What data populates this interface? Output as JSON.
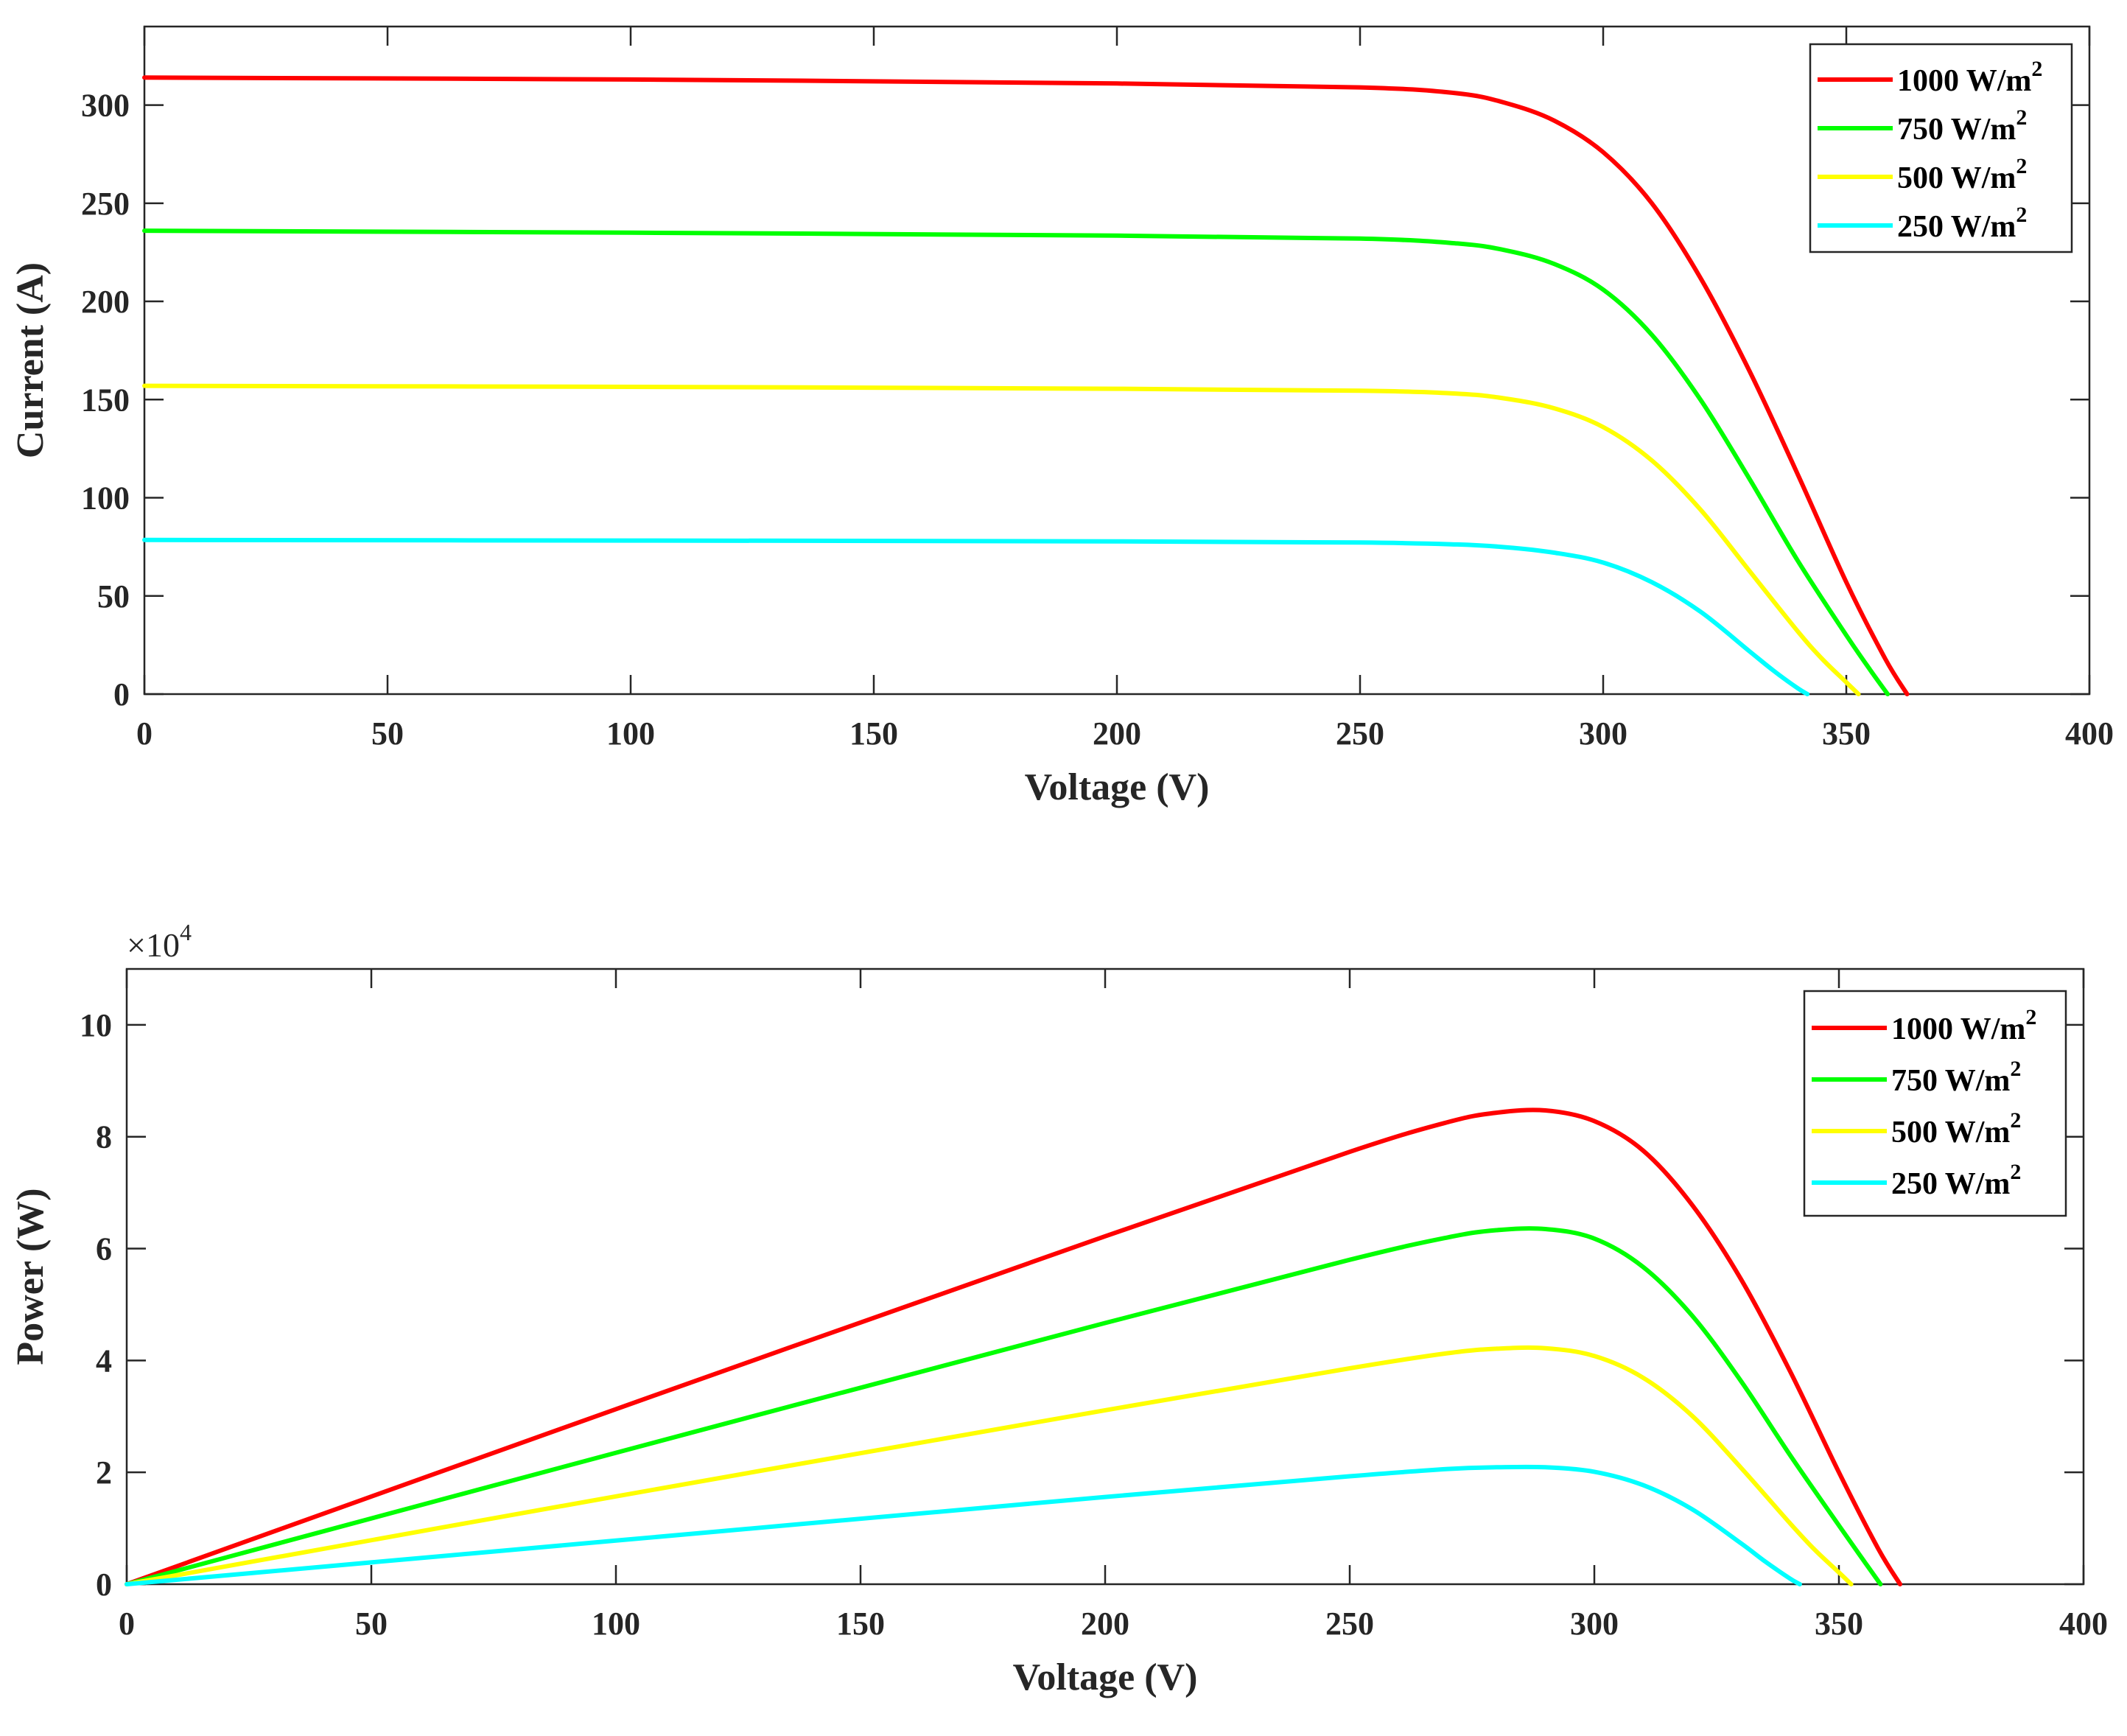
{
  "chart_data": [
    {
      "type": "line",
      "xlabel": "Voltage (V)",
      "ylabel": "Current (A)",
      "xlim": [
        0,
        400
      ],
      "ylim": [
        0,
        340
      ],
      "xticks": [
        0,
        50,
        100,
        150,
        200,
        250,
        300,
        350,
        400
      ],
      "yticks": [
        0,
        50,
        100,
        150,
        200,
        250,
        300
      ],
      "legend_position": "top-right",
      "series": [
        {
          "name": "1000 W/m",
          "sup": "2",
          "color": "#ff0000",
          "x": [
            0,
            100,
            200,
            250,
            270,
            280,
            290,
            300,
            310,
            320,
            330,
            340,
            350,
            358,
            362.5
          ],
          "y": [
            314,
            313,
            311,
            309,
            306,
            301,
            292,
            276,
            250,
            212,
            165,
            112,
            57,
            18,
            0
          ]
        },
        {
          "name": "750 W/m",
          "sup": "2",
          "color": "#00ff00",
          "x": [
            0,
            100,
            200,
            250,
            270,
            280,
            290,
            300,
            310,
            320,
            330,
            340,
            350,
            355,
            358.5
          ],
          "y": [
            236,
            235,
            233.5,
            232,
            229.5,
            226,
            219,
            206,
            183,
            150,
            110,
            68,
            30,
            12,
            0
          ]
        },
        {
          "name": "500 W/m",
          "sup": "2",
          "color": "#ffff00",
          "x": [
            0,
            100,
            200,
            250,
            270,
            280,
            290,
            300,
            310,
            320,
            330,
            340,
            345,
            350,
            352.5
          ],
          "y": [
            157,
            156.5,
            155.5,
            154.5,
            153,
            150.5,
            145.5,
            136,
            119,
            94,
            63,
            32,
            18,
            6,
            0
          ]
        },
        {
          "name": "250 W/m",
          "sup": "2",
          "color": "#00ffff",
          "x": [
            0,
            100,
            200,
            250,
            270,
            280,
            290,
            300,
            310,
            320,
            330,
            335,
            340,
            342
          ],
          "y": [
            78.5,
            78.2,
            77.8,
            77.2,
            76.2,
            74.8,
            72,
            67,
            57,
            42,
            22,
            12,
            3,
            0
          ]
        }
      ]
    },
    {
      "type": "line",
      "xlabel": "Voltage (V)",
      "ylabel": "Power (W)",
      "y_multiplier": "×10",
      "y_multiplier_exp": "4",
      "xlim": [
        0,
        400
      ],
      "ylim": [
        0,
        11
      ],
      "xticks": [
        0,
        50,
        100,
        150,
        200,
        250,
        300,
        350,
        400
      ],
      "yticks": [
        0,
        2,
        4,
        6,
        8,
        10
      ],
      "legend_position": "top-right",
      "series": [
        {
          "name": "1000 W/m",
          "sup": "2",
          "color": "#ff0000",
          "x": [
            0,
            100,
            200,
            250,
            270,
            280,
            290,
            300,
            310,
            320,
            330,
            340,
            350,
            358,
            362.5
          ],
          "y": [
            0,
            3.13,
            6.22,
            7.73,
            8.26,
            8.43,
            8.47,
            8.28,
            7.75,
            6.78,
            5.45,
            3.81,
            2.0,
            0.64,
            0
          ]
        },
        {
          "name": "750 W/m",
          "sup": "2",
          "color": "#00ff00",
          "x": [
            0,
            100,
            200,
            250,
            270,
            280,
            290,
            300,
            310,
            320,
            330,
            340,
            350,
            355,
            358.5
          ],
          "y": [
            0,
            2.35,
            4.67,
            5.8,
            6.2,
            6.33,
            6.35,
            6.18,
            5.67,
            4.8,
            3.63,
            2.31,
            1.05,
            0.43,
            0
          ]
        },
        {
          "name": "500 W/m",
          "sup": "2",
          "color": "#ffff00",
          "x": [
            0,
            100,
            200,
            250,
            270,
            280,
            290,
            300,
            310,
            320,
            330,
            340,
            345,
            350,
            352.5
          ],
          "y": [
            0,
            1.57,
            3.11,
            3.86,
            4.13,
            4.21,
            4.22,
            4.08,
            3.69,
            3.01,
            2.08,
            1.09,
            0.62,
            0.21,
            0
          ]
        },
        {
          "name": "250 W/m",
          "sup": "2",
          "color": "#00ffff",
          "x": [
            0,
            100,
            200,
            250,
            270,
            280,
            290,
            300,
            310,
            320,
            330,
            335,
            340,
            342
          ],
          "y": [
            0,
            0.78,
            1.56,
            1.93,
            2.06,
            2.09,
            2.09,
            2.01,
            1.77,
            1.34,
            0.73,
            0.4,
            0.1,
            0
          ]
        }
      ]
    }
  ]
}
